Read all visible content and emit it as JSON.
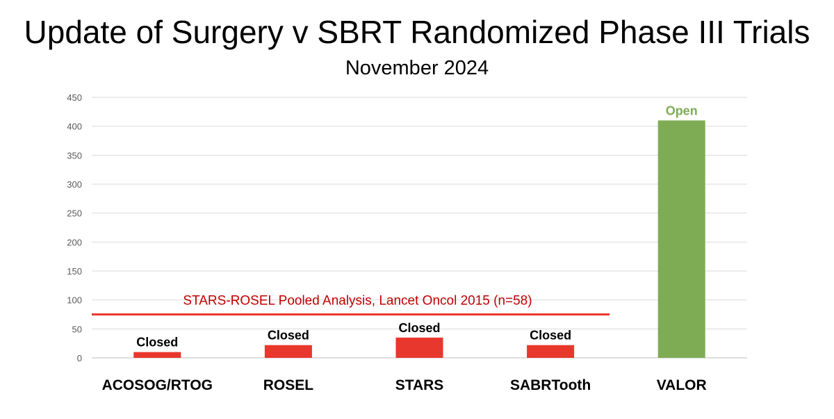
{
  "chart_data": {
    "type": "bar",
    "title": "Update of Surgery v SBRT Randomized Phase III Trials",
    "subtitle": "November 2024",
    "categories": [
      "ACOSOG/RTOG",
      "ROSEL",
      "STARS",
      "SABRTooth",
      "VALOR"
    ],
    "values": [
      10,
      22,
      35,
      22,
      410
    ],
    "bar_labels": [
      "Closed",
      "Closed",
      "Closed",
      "Closed",
      "Open"
    ],
    "bar_colors": [
      "#e8372c",
      "#e8372c",
      "#e8372c",
      "#e8372c",
      "#7eac55"
    ],
    "label_colors": [
      "#000000",
      "#000000",
      "#000000",
      "#000000",
      "#7eac55"
    ],
    "ylim": [
      0,
      450
    ],
    "yticks": [
      0,
      50,
      100,
      150,
      200,
      250,
      300,
      350,
      400,
      450
    ],
    "grid": true,
    "reference_line": {
      "y": 75,
      "label": "STARS-ROSEL Pooled Analysis, Lancet Oncol 2015 (n=58)",
      "color": "#e8372c",
      "span_categories": [
        0,
        3
      ]
    }
  }
}
